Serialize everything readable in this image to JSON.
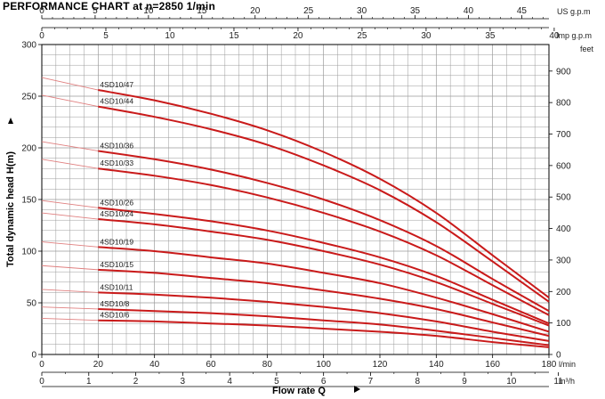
{
  "chart_data": {
    "type": "line",
    "title": "PERFORMANCE CHART at n=2850 1/min",
    "ylabel": "Total dynamic head H(m)",
    "xlabel": "Flow rate Q",
    "x_unit": "l/min",
    "x_range": [
      0,
      180
    ],
    "x_ticks": [
      0,
      20,
      40,
      60,
      80,
      100,
      120,
      140,
      160,
      180
    ],
    "y_range": [
      0,
      300
    ],
    "y_ticks": [
      0,
      50,
      100,
      150,
      200,
      250,
      300
    ],
    "secondary_axes": {
      "us_gpm": {
        "label": "US g.p.m",
        "ticks": [
          0,
          5,
          10,
          15,
          20,
          25,
          30,
          35,
          40,
          45
        ],
        "range": [
          0,
          47.55
        ]
      },
      "imp_gpm": {
        "label": "Imp g.p.m",
        "ticks": [
          0,
          5,
          10,
          15,
          20,
          25,
          30,
          35,
          40
        ],
        "range": [
          0,
          39.59
        ]
      },
      "feet": {
        "label": "feet",
        "ticks": [
          0,
          100,
          200,
          300,
          400,
          500,
          600,
          700,
          800,
          900
        ],
        "range": [
          0,
          984.3
        ]
      },
      "m3h": {
        "label": "m³/h",
        "ticks": [
          0,
          1,
          2,
          3,
          4,
          5,
          6,
          7,
          8,
          9,
          10,
          11
        ],
        "range": [
          0,
          10.8
        ]
      }
    },
    "grid": true,
    "x": [
      20,
      40,
      60,
      80,
      100,
      120,
      140,
      160,
      180
    ],
    "series": [
      {
        "name": "4SD10/47",
        "values": [
          256,
          246,
          233,
          217,
          196,
          170,
          137,
          96,
          55
        ]
      },
      {
        "name": "4SD10/44",
        "values": [
          240,
          230,
          218,
          203,
          183,
          159,
          128,
          90,
          51
        ]
      },
      {
        "name": "4SD10/36",
        "values": [
          197,
          189,
          179,
          166,
          150,
          130,
          105,
          73,
          42
        ]
      },
      {
        "name": "4SD10/33",
        "values": [
          180,
          173,
          164,
          152,
          137,
          119,
          96,
          67,
          38
        ]
      },
      {
        "name": "4SD10/26",
        "values": [
          142,
          136,
          129,
          120,
          108,
          94,
          76,
          53,
          30
        ]
      },
      {
        "name": "4SD10/24",
        "values": [
          131,
          126,
          119,
          111,
          100,
          87,
          70,
          49,
          28
        ]
      },
      {
        "name": "4SD10/19",
        "values": [
          104,
          100,
          94,
          88,
          79,
          69,
          55,
          39,
          22
        ]
      },
      {
        "name": "4SD10/15",
        "values": [
          82,
          79,
          74,
          69,
          62,
          54,
          44,
          31,
          18
        ]
      },
      {
        "name": "4SD10/11",
        "values": [
          60,
          58,
          55,
          51,
          46,
          40,
          32,
          22,
          13
        ]
      },
      {
        "name": "4SD10/8",
        "values": [
          44,
          42,
          40,
          37,
          33,
          29,
          23,
          16,
          9
        ]
      },
      {
        "name": "4SD10/6",
        "values": [
          33,
          32,
          30,
          28,
          25,
          22,
          18,
          12,
          7
        ]
      }
    ],
    "extension_start_y": [
      268,
      251,
      206,
      189,
      149,
      137,
      109,
      86,
      63,
      46,
      35
    ],
    "colors": {
      "curve": "#c91a1a",
      "extension": "#e08080",
      "grid": "#9a9a9a",
      "axis": "#000000"
    }
  }
}
